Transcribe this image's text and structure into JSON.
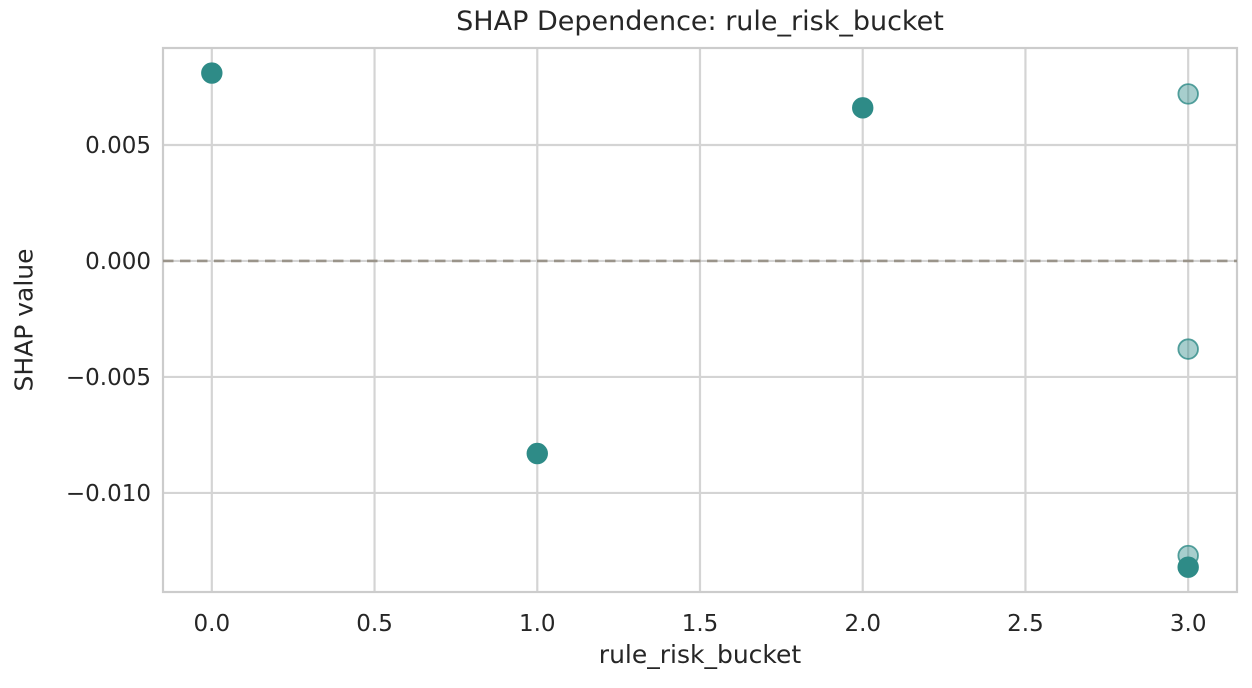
{
  "chart_data": {
    "type": "scatter",
    "title": "SHAP Dependence: rule_risk_bucket",
    "xlabel": "rule_risk_bucket",
    "ylabel": "SHAP value",
    "xlim": [
      -0.15,
      3.15
    ],
    "ylim": [
      -0.01427,
      0.00918
    ],
    "grid": true,
    "legend": "none",
    "xticks": [
      {
        "value": 0.0,
        "label": "0.0"
      },
      {
        "value": 0.5,
        "label": "0.5"
      },
      {
        "value": 1.0,
        "label": "1.0"
      },
      {
        "value": 1.5,
        "label": "1.5"
      },
      {
        "value": 2.0,
        "label": "2.0"
      },
      {
        "value": 2.5,
        "label": "2.5"
      },
      {
        "value": 3.0,
        "label": "3.0"
      }
    ],
    "yticks": [
      {
        "value": 0.005,
        "label": "0.005"
      },
      {
        "value": 0.0,
        "label": "0.000"
      },
      {
        "value": -0.005,
        "label": "−0.005"
      },
      {
        "value": -0.01,
        "label": "−0.010"
      }
    ],
    "zero_line": {
      "y": 0.0,
      "style": "dashed",
      "color": "#9a948a"
    },
    "series": [
      {
        "name": "shap-points",
        "marker": "circle",
        "color": "#2e8b87",
        "points": [
          {
            "x": 0.0,
            "y": 0.0081,
            "shade": "solid"
          },
          {
            "x": 1.0,
            "y": -0.0083,
            "shade": "solid"
          },
          {
            "x": 2.0,
            "y": 0.0066,
            "shade": "solid"
          },
          {
            "x": 3.0,
            "y": 0.0072,
            "shade": "faded"
          },
          {
            "x": 3.0,
            "y": -0.0038,
            "shade": "faded"
          },
          {
            "x": 3.0,
            "y": -0.0127,
            "shade": "faded"
          },
          {
            "x": 3.0,
            "y": -0.0132,
            "shade": "solid"
          }
        ]
      }
    ],
    "colors": {
      "point": "#2e8b87",
      "grid": "#d4d4d4",
      "spine": "#cccccc",
      "zero_line": "#9a948a",
      "text": "#262626",
      "background": "#ffffff"
    }
  }
}
